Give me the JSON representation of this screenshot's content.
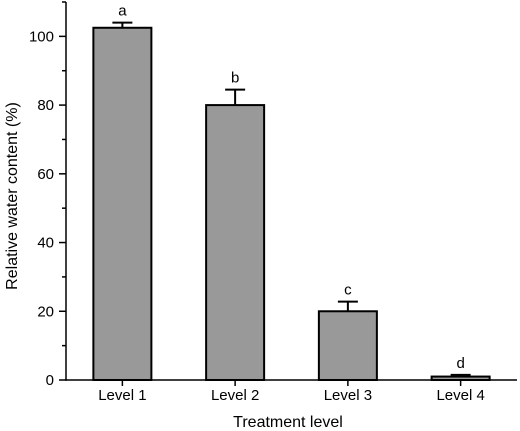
{
  "chart_data": {
    "type": "bar",
    "title": "",
    "xlabel": "Treatment level",
    "ylabel": "Relative water content (%)",
    "categories": [
      "Level 1",
      "Level 2",
      "Level 3",
      "Level 4"
    ],
    "values": [
      102.5,
      80,
      20,
      1
    ],
    "errors": [
      1.5,
      4.5,
      2.8,
      0.5
    ],
    "significance": [
      "a",
      "b",
      "c",
      "d"
    ],
    "ylim": [
      0,
      110
    ],
    "yticks": [
      0,
      20,
      40,
      60,
      80,
      100
    ],
    "ytick_labels": [
      "0",
      "20",
      "40",
      "60",
      "80",
      "100"
    ],
    "grid": false,
    "legend": "none",
    "bar_color": "#999999"
  }
}
